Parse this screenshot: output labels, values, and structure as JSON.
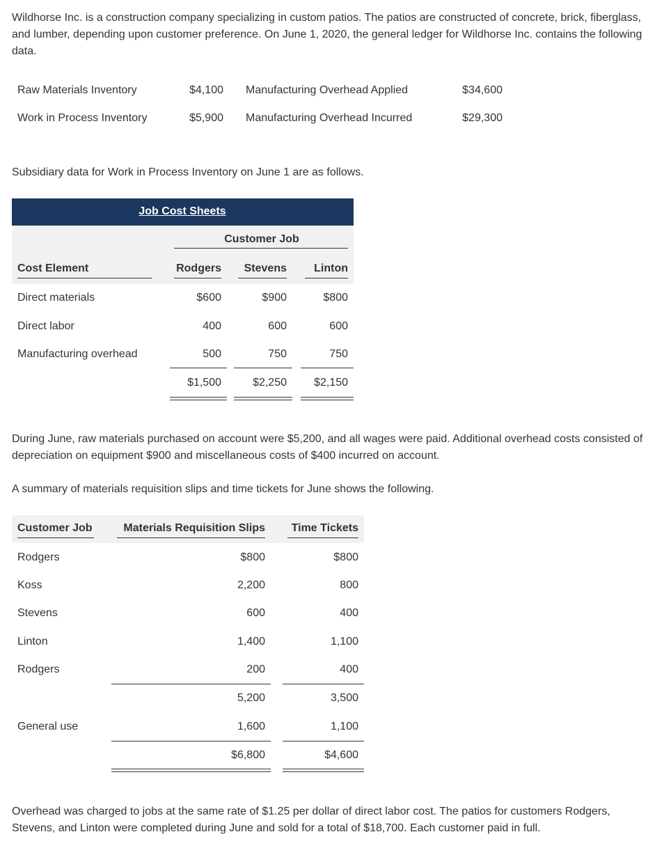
{
  "intro": "Wildhorse Inc. is a construction company specializing in custom patios. The patios are constructed of concrete, brick, fiberglass, and lumber, depending upon customer preference. On June 1, 2020, the general ledger for Wildhorse Inc. contains the following data.",
  "ledger": [
    [
      "Raw Materials Inventory",
      "$4,100",
      "Manufacturing Overhead Applied",
      "$34,600"
    ],
    [
      "Work in Process Inventory",
      "$5,900",
      "Manufacturing Overhead Incurred",
      "$29,300"
    ]
  ],
  "subsidiary_intro": "Subsidiary data for Work in Process Inventory on June 1 are as follows.",
  "job_cost": {
    "title": "Job Cost Sheets",
    "group_header": "Customer Job",
    "columns": [
      "Cost Element",
      "Rodgers",
      "Stevens",
      "Linton"
    ],
    "rows": [
      [
        "Direct materials",
        "$600",
        "$900",
        "$800"
      ],
      [
        "Direct labor",
        "400",
        "600",
        "600"
      ],
      [
        "Manufacturing overhead",
        "500",
        "750",
        "750"
      ]
    ],
    "totals": [
      "$1,500",
      "$2,250",
      "$2,150"
    ]
  },
  "june_text": "During June, raw materials purchased on account were $5,200, and all wages were paid. Additional overhead costs consisted of depreciation on equipment $900 and miscellaneous costs of $400 incurred on account.",
  "summary_intro": "A summary of materials requisition slips and time tickets for June shows the following.",
  "requisitions": {
    "columns": [
      "Customer Job",
      "Materials Requisition Slips",
      "Time Tickets"
    ],
    "rows": [
      [
        "Rodgers",
        "$800",
        "$800"
      ],
      [
        "Koss",
        "2,200",
        "800"
      ],
      [
        "Stevens",
        "600",
        "400"
      ],
      [
        "Linton",
        "1,400",
        "1,100"
      ],
      [
        "Rodgers",
        "200",
        "400"
      ]
    ],
    "subtotal": [
      "5,200",
      "3,500"
    ],
    "general": [
      "General use",
      "1,600",
      "1,100"
    ],
    "totals": [
      "$6,800",
      "$4,600"
    ]
  },
  "closing": "Overhead was charged to jobs at the same rate of $1.25 per dollar of direct labor cost. The patios for customers Rodgers, Stevens, and Linton were completed during June and sold for a total of $18,700. Each customer paid in full."
}
